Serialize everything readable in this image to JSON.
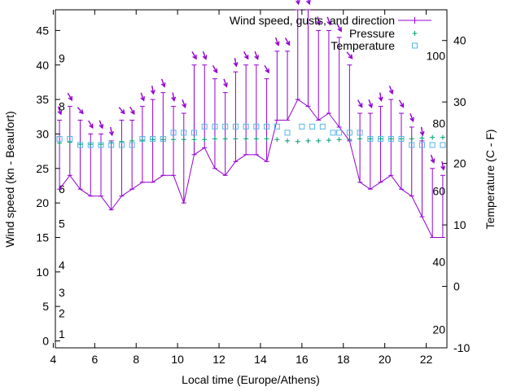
{
  "chart_data": {
    "type": "line",
    "title": "",
    "xlabel": "Local time (Europe/Athens)",
    "ylabel": "Wind speed (kn - Beaufort)",
    "y2label": "Temperature (C - F)",
    "xlim": [
      4.1,
      23.0
    ],
    "ylim": [
      -1,
      48
    ],
    "y2lim": [
      -10,
      45
    ],
    "x_ticks": [
      4,
      6,
      8,
      10,
      12,
      14,
      16,
      18,
      20,
      22
    ],
    "y_ticks": [
      0,
      5,
      10,
      15,
      20,
      25,
      30,
      35,
      40,
      45
    ],
    "y2_ticks": [
      -10,
      0,
      10,
      20,
      30,
      40
    ],
    "beaufort_labels": [
      {
        "label": "1",
        "y": 1
      },
      {
        "label": "2",
        "y": 4
      },
      {
        "label": "3",
        "y": 7
      },
      {
        "label": "4",
        "y": 11
      },
      {
        "label": "5",
        "y": 17
      },
      {
        "label": "6",
        "y": 22
      },
      {
        "label": "8",
        "y": 34
      },
      {
        "label": "9",
        "y": 41
      }
    ],
    "fahrenheit_labels": [
      {
        "label": "20",
        "y2": -7
      },
      {
        "label": "40",
        "y2": 4
      },
      {
        "label": "60",
        "y2": 15.5
      },
      {
        "label": "80",
        "y2": 26.5
      },
      {
        "label": "100",
        "y2": 37.5
      }
    ],
    "legend": {
      "placement": "top-right",
      "entries": [
        "Wind speed, gusts, and direction",
        "Pressure",
        "Temperature"
      ]
    },
    "colors": {
      "wind": "#9400d3",
      "pressure": "#009e73",
      "temperature": "#56b4e9"
    },
    "series": [
      {
        "name": "Wind speed, gusts, and direction",
        "x": [
          4.3,
          4.8,
          5.3,
          5.8,
          6.3,
          6.8,
          7.3,
          7.8,
          8.3,
          8.8,
          9.3,
          9.8,
          10.3,
          10.8,
          11.3,
          11.8,
          12.3,
          12.8,
          13.3,
          13.8,
          14.3,
          14.8,
          15.3,
          15.8,
          16.3,
          16.8,
          17.3,
          17.8,
          18.3,
          18.8,
          19.3,
          19.8,
          20.3,
          20.8,
          21.3,
          21.8,
          22.3,
          22.8
        ],
        "values": [
          22,
          24,
          22,
          21,
          21,
          19,
          21,
          22,
          23,
          23,
          24,
          24,
          20,
          27,
          28,
          25,
          24,
          26,
          27,
          27,
          26,
          32,
          32,
          35,
          34,
          32,
          33,
          31,
          29,
          23,
          22,
          23,
          24,
          22,
          21,
          18,
          15,
          15
        ],
        "gusts": [
          32,
          34,
          32,
          30,
          30,
          29,
          32,
          32,
          34,
          35,
          36,
          34,
          33,
          40,
          40,
          38,
          36,
          39,
          40,
          40,
          38,
          42,
          42,
          48,
          48,
          45,
          45,
          44,
          40,
          33,
          33,
          34,
          35,
          33,
          31,
          29,
          25,
          24
        ],
        "direction_deg": [
          20,
          30,
          40,
          30,
          20,
          10,
          40,
          30,
          20,
          10,
          20,
          10,
          20,
          30,
          20,
          30,
          20,
          10,
          30,
          20,
          30,
          20,
          30,
          10,
          20,
          10,
          20,
          30,
          40,
          30,
          20,
          10,
          20,
          30,
          20,
          10,
          20,
          10
        ]
      },
      {
        "name": "Pressure",
        "x": [
          4.3,
          4.8,
          5.3,
          5.8,
          6.3,
          6.8,
          7.3,
          7.8,
          8.3,
          8.8,
          9.3,
          9.8,
          10.3,
          10.8,
          11.3,
          11.8,
          12.3,
          12.8,
          13.3,
          13.8,
          14.3,
          14.8,
          15.3,
          15.8,
          16.3,
          16.8,
          17.3,
          17.8,
          18.3,
          18.8,
          19.3,
          19.8,
          20.3,
          20.8,
          21.3,
          21.8,
          22.3,
          22.8
        ],
        "values": [
          28.7,
          28.8,
          28.5,
          28.5,
          28.5,
          28.7,
          28.9,
          29.0,
          29.1,
          29.2,
          29.2,
          29.2,
          29.2,
          29.2,
          29.2,
          29.3,
          29.3,
          29.3,
          29.3,
          29.3,
          29.3,
          29.2,
          29.0,
          28.9,
          29.0,
          29.0,
          29.1,
          29.2,
          29.2,
          29.3,
          29.3,
          29.3,
          29.3,
          29.3,
          29.3,
          29.4,
          29.5,
          29.5
        ]
      },
      {
        "name": "Temperature",
        "x": [
          4.3,
          4.8,
          5.3,
          5.8,
          6.3,
          6.8,
          7.3,
          7.8,
          8.3,
          8.8,
          9.3,
          9.8,
          10.3,
          10.8,
          11.3,
          11.8,
          12.3,
          12.8,
          13.3,
          13.8,
          14.3,
          14.8,
          15.3,
          16.0,
          16.5,
          17.0,
          17.5,
          17.8,
          18.3,
          18.8,
          19.3,
          19.8,
          20.3,
          20.8,
          21.3,
          21.8,
          22.3,
          22.8
        ],
        "values": [
          24,
          24,
          23,
          23,
          23,
          23,
          23,
          23,
          24,
          24,
          24,
          25,
          25,
          25,
          26,
          26,
          26,
          26,
          26,
          26,
          26,
          26,
          25,
          26,
          26,
          26,
          25,
          25,
          25,
          25,
          24,
          24,
          24,
          24,
          23,
          23,
          23,
          23
        ]
      }
    ]
  }
}
